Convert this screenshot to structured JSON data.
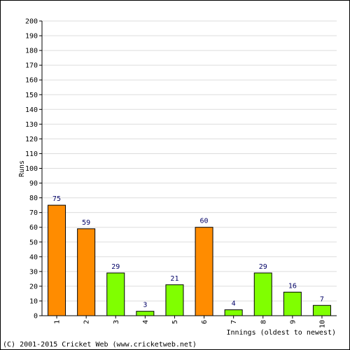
{
  "chart_data": {
    "type": "bar",
    "title": "",
    "xlabel": "Innings (oldest to newest)",
    "ylabel": "Runs",
    "ylim": [
      0,
      200
    ],
    "ytick_step": 10,
    "grid": true,
    "categories": [
      "1",
      "2",
      "3",
      "4",
      "5",
      "6",
      "7",
      "8",
      "9",
      "10"
    ],
    "values": [
      75,
      59,
      29,
      3,
      21,
      60,
      4,
      29,
      16,
      7
    ],
    "bar_colors": [
      "#ff8c00",
      "#ff8c00",
      "#80ff00",
      "#80ff00",
      "#80ff00",
      "#ff8c00",
      "#80ff00",
      "#80ff00",
      "#80ff00",
      "#80ff00"
    ]
  },
  "footer": {
    "copyright": "(C) 2001-2015 Cricket Web (www.cricketweb.net)"
  }
}
